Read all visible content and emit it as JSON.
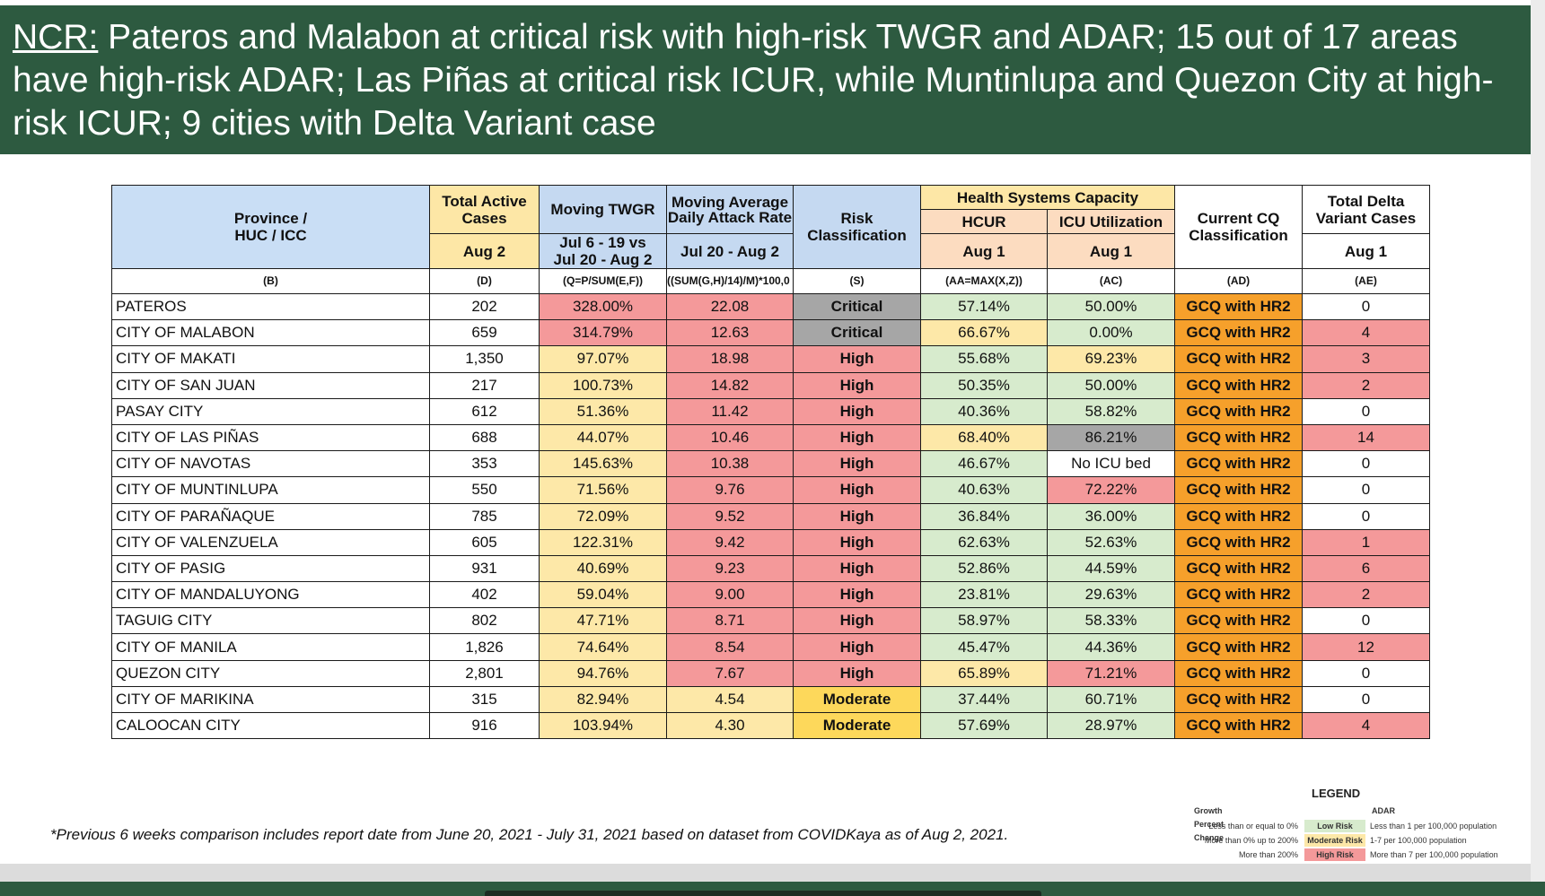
{
  "banner": {
    "prefix": "NCR:",
    "text": " Pateros and Malabon at critical risk with high-risk TWGR and ADAR; 15 out of 17 areas have high-risk ADAR; Las Piñas at critical risk ICUR, while Muntinlupa and Quezon City at high-risk ICUR; 9 cities with Delta Variant case"
  },
  "table": {
    "headers": {
      "province": "Province / HUC / ICC",
      "total_active": "Total Active Cases",
      "total_active_date": "Aug 2",
      "twgr": "Moving TWGR",
      "twgr_period": "Jul 6 - 19 vs Jul 20 - Aug 2",
      "adar": "Moving Average Daily Attack Rate",
      "adar_period": "Jul 20 - Aug 2",
      "risk": "Risk Classification",
      "hsc": "Health Systems Capacity",
      "hcur": "HCUR",
      "hcur_date": "Aug 1",
      "icu": "ICU Utilization",
      "icu_date": "Aug 1",
      "cq": "Current CQ Classification",
      "delta": "Total Delta Variant Cases",
      "delta_date": "Aug 1"
    },
    "formulas": [
      "(B)",
      "(D)",
      "(Q=P/SUM(E,F))",
      "((SUM(G,H)/14)/M)*100,0",
      "(S)",
      "(AA=MAX(X,Z))",
      "(AC)",
      "(AD)",
      "(AE)"
    ],
    "rows": [
      {
        "province": "PATEROS",
        "active": "202",
        "twgr": "328.00%",
        "adar": "22.08",
        "risk": "Critical",
        "hcur": "57.14%",
        "icu": "50.00%",
        "cq": "GCQ with HR2",
        "delta": "0"
      },
      {
        "province": "CITY OF MALABON",
        "active": "659",
        "twgr": "314.79%",
        "adar": "12.63",
        "risk": "Critical",
        "hcur": "66.67%",
        "icu": "0.00%",
        "cq": "GCQ with HR2",
        "delta": "4"
      },
      {
        "province": "CITY OF MAKATI",
        "active": "1,350",
        "twgr": "97.07%",
        "adar": "18.98",
        "risk": "High",
        "hcur": "55.68%",
        "icu": "69.23%",
        "cq": "GCQ with HR2",
        "delta": "3"
      },
      {
        "province": "CITY OF SAN JUAN",
        "active": "217",
        "twgr": "100.73%",
        "adar": "14.82",
        "risk": "High",
        "hcur": "50.35%",
        "icu": "50.00%",
        "cq": "GCQ with HR2",
        "delta": "2"
      },
      {
        "province": "PASAY CITY",
        "active": "612",
        "twgr": "51.36%",
        "adar": "11.42",
        "risk": "High",
        "hcur": "40.36%",
        "icu": "58.82%",
        "cq": "GCQ with HR2",
        "delta": "0"
      },
      {
        "province": "CITY OF LAS PIÑAS",
        "active": "688",
        "twgr": "44.07%",
        "adar": "10.46",
        "risk": "High",
        "hcur": "68.40%",
        "icu": "86.21%",
        "cq": "GCQ with HR2",
        "delta": "14"
      },
      {
        "province": "CITY OF NAVOTAS",
        "active": "353",
        "twgr": "145.63%",
        "adar": "10.38",
        "risk": "High",
        "hcur": "46.67%",
        "icu": "No ICU bed",
        "cq": "GCQ with HR2",
        "delta": "0"
      },
      {
        "province": "CITY OF MUNTINLUPA",
        "active": "550",
        "twgr": "71.56%",
        "adar": "9.76",
        "risk": "High",
        "hcur": "40.63%",
        "icu": "72.22%",
        "cq": "GCQ with HR2",
        "delta": "0"
      },
      {
        "province": "CITY OF PARAÑAQUE",
        "active": "785",
        "twgr": "72.09%",
        "adar": "9.52",
        "risk": "High",
        "hcur": "36.84%",
        "icu": "36.00%",
        "cq": "GCQ with HR2",
        "delta": "0"
      },
      {
        "province": "CITY OF VALENZUELA",
        "active": "605",
        "twgr": "122.31%",
        "adar": "9.42",
        "risk": "High",
        "hcur": "62.63%",
        "icu": "52.63%",
        "cq": "GCQ with HR2",
        "delta": "1"
      },
      {
        "province": "CITY OF PASIG",
        "active": "931",
        "twgr": "40.69%",
        "adar": "9.23",
        "risk": "High",
        "hcur": "52.86%",
        "icu": "44.59%",
        "cq": "GCQ with HR2",
        "delta": "6"
      },
      {
        "province": "CITY OF MANDALUYONG",
        "active": "402",
        "twgr": "59.04%",
        "adar": "9.00",
        "risk": "High",
        "hcur": "23.81%",
        "icu": "29.63%",
        "cq": "GCQ with HR2",
        "delta": "2"
      },
      {
        "province": "TAGUIG CITY",
        "active": "802",
        "twgr": "47.71%",
        "adar": "8.71",
        "risk": "High",
        "hcur": "58.97%",
        "icu": "58.33%",
        "cq": "GCQ with HR2",
        "delta": "0"
      },
      {
        "province": "CITY OF MANILA",
        "active": "1,826",
        "twgr": "74.64%",
        "adar": "8.54",
        "risk": "High",
        "hcur": "45.47%",
        "icu": "44.36%",
        "cq": "GCQ with HR2",
        "delta": "12"
      },
      {
        "province": "QUEZON CITY",
        "active": "2,801",
        "twgr": "94.76%",
        "adar": "7.67",
        "risk": "High",
        "hcur": "65.89%",
        "icu": "71.21%",
        "cq": "GCQ with HR2",
        "delta": "0"
      },
      {
        "province": "CITY OF MARIKINA",
        "active": "315",
        "twgr": "82.94%",
        "adar": "4.54",
        "risk": "Moderate",
        "hcur": "37.44%",
        "icu": "60.71%",
        "cq": "GCQ with HR2",
        "delta": "0"
      },
      {
        "province": "CALOOCAN CITY",
        "active": "916",
        "twgr": "103.94%",
        "adar": "4.30",
        "risk": "Moderate",
        "hcur": "57.69%",
        "icu": "28.97%",
        "cq": "GCQ with HR2",
        "delta": "4"
      }
    ]
  },
  "colors": {
    "banner": "#2d5a40",
    "high_risk": "#f4999a",
    "moderate_risk": "#fde8a8",
    "low_risk": "#d7ebcd",
    "critical": "#a6a6a6",
    "moderate_class": "#fdd85b",
    "cq": "#f6a02b"
  },
  "footnote": "*Previous 6 weeks comparison includes report date from June 20, 2021 - July 31, 2021 based on dataset from COVIDKaya as of Aug 2, 2021.",
  "legend": {
    "title": "LEGEND",
    "growth_header": "Growth Percent Change",
    "adar_header": "ADAR",
    "rows": [
      {
        "growth": "Less than or equal to 0%",
        "risk": "Low Risk",
        "adar": "Less than 1 per 100,000 population"
      },
      {
        "growth": "More than 0% up to 200%",
        "risk": "Moderate Risk",
        "adar": "1-7 per 100,000 population"
      },
      {
        "growth": "More than 200%",
        "risk": "High Risk",
        "adar": "More than 7 per 100,000 population"
      }
    ]
  }
}
